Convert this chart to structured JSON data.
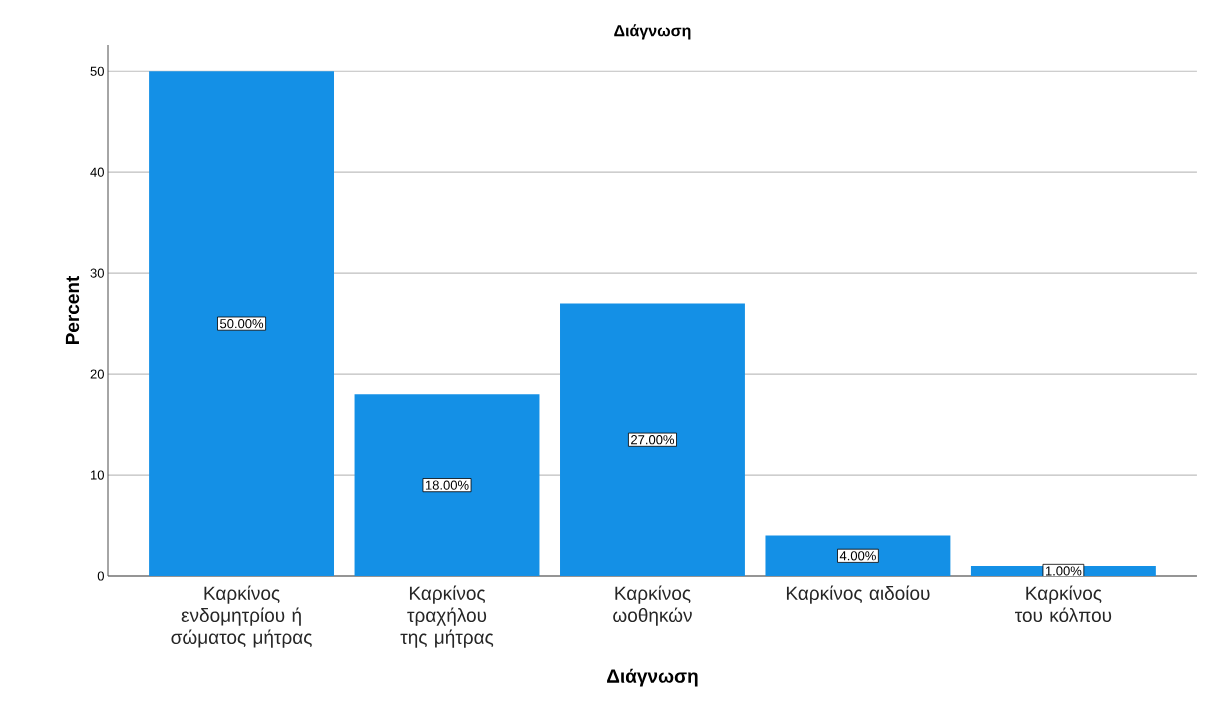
{
  "chart_data": {
    "type": "bar",
    "title": "Διάγνωση",
    "xlabel": "Διάγνωση",
    "ylabel": "Percent",
    "categories": [
      "Καρκίνος ενδομητρίου ή σώματος μήτρας",
      "Καρκίνος τραχήλου της μήτρας",
      "Καρκίνος ωοθηκών",
      "Καρκίνος αιδοίου",
      "Καρκίνος του κόλπου"
    ],
    "values": [
      50,
      18,
      27,
      4,
      1
    ],
    "value_labels": [
      "50.00%",
      "18.00%",
      "27.00%",
      "4.00%",
      "1.00%"
    ],
    "color": "#1490e6",
    "ylim": [
      0,
      52.6
    ],
    "yticks": [
      0,
      10,
      20,
      30,
      40,
      50
    ],
    "grid": "y"
  }
}
